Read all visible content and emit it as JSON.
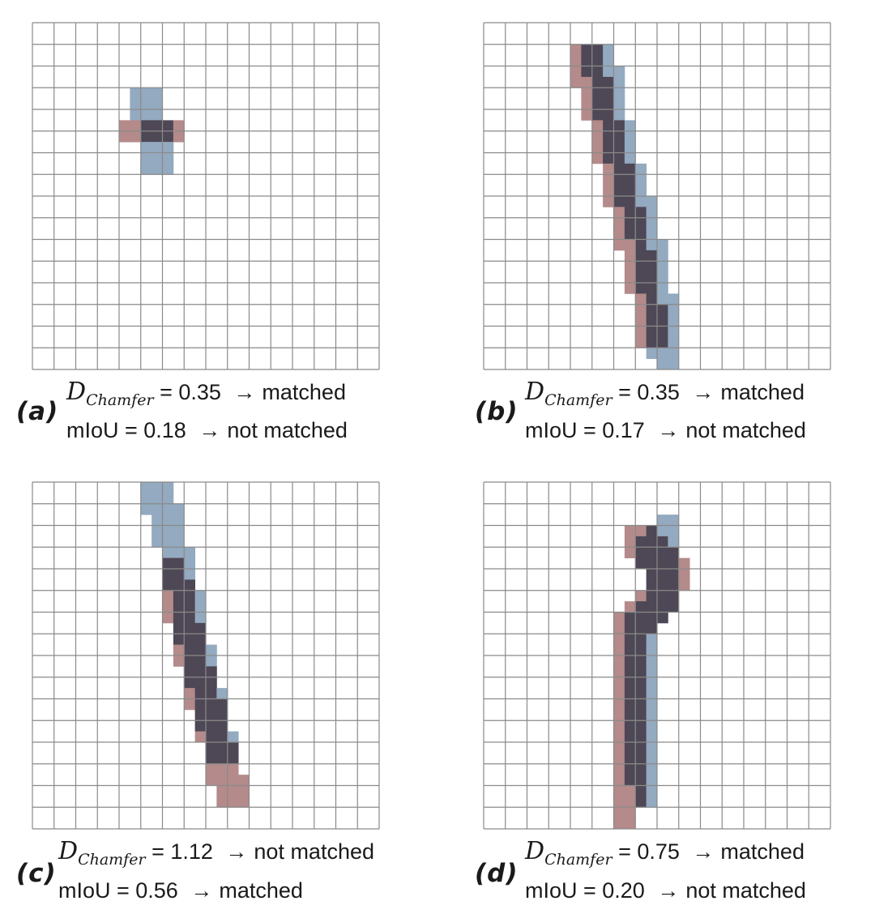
{
  "figure": {
    "colors": {
      "grid_line": "#8a8a8a",
      "prediction": "#b48a8a",
      "ground_truth": "#93aac0",
      "overlap": "#4e4755"
    },
    "panels": [
      {
        "tag": "(a)",
        "metric_symbol": "D",
        "metric_subscript": "Chamfer",
        "chamfer_text": "= 0.35",
        "chamfer_result": "matched",
        "miou_text": "mIoU = 0.18",
        "miou_result": "not matched",
        "grid_size": 16,
        "ground_truth_path": [
          [
            5.3,
            3.8
          ],
          [
            5.6,
            5.0
          ],
          [
            5.9,
            6.5
          ]
        ],
        "prediction_path": [
          [
            4.4,
            4.9
          ],
          [
            6.4,
            5.0
          ]
        ]
      },
      {
        "tag": "(b)",
        "metric_symbol": "D",
        "metric_subscript": "Chamfer",
        "chamfer_text": "= 0.35",
        "chamfer_result": "matched",
        "miou_text": "mIoU = 0.17",
        "miou_result": "not matched",
        "grid_size": 16,
        "ground_truth_path": [
          [
            5.3,
            1.4
          ],
          [
            5.8,
            3.5
          ],
          [
            6.5,
            6.5
          ],
          [
            7.5,
            10.0
          ],
          [
            8.1,
            13.0
          ],
          [
            8.5,
            15.5
          ]
        ],
        "prediction_path": [
          [
            4.7,
            1.8
          ],
          [
            5.5,
            4.5
          ],
          [
            6.4,
            8.0
          ],
          [
            7.3,
            11.5
          ],
          [
            7.8,
            14.5
          ]
        ]
      },
      {
        "tag": "(c)",
        "metric_symbol": "D",
        "metric_subscript": "Chamfer",
        "chamfer_text": "= 1.12",
        "chamfer_result": "not matched",
        "miou_text": "mIoU = 0.56",
        "miou_result": "matched",
        "grid_size": 16,
        "ground_truth_path": [
          [
            5.8,
            0.6
          ],
          [
            6.5,
            3.0
          ],
          [
            7.2,
            6.0
          ],
          [
            8.0,
            9.5
          ],
          [
            8.7,
            12.3
          ]
        ],
        "prediction_path": [
          [
            6.4,
            3.9
          ],
          [
            7.0,
            6.5
          ],
          [
            7.8,
            9.5
          ],
          [
            8.5,
            12.2
          ],
          [
            9.2,
            14.4
          ]
        ]
      },
      {
        "tag": "(d)",
        "metric_symbol": "D",
        "metric_subscript": "Chamfer",
        "chamfer_text": "= 0.75",
        "chamfer_result": "matched",
        "miou_text": "mIoU = 0.20",
        "miou_result": "not matched",
        "grid_size": 16,
        "ground_truth_path": [
          [
            8.6,
            2.1
          ],
          [
            7.8,
            3.2
          ],
          [
            8.5,
            4.4
          ],
          [
            8.1,
            5.5
          ],
          [
            7.1,
            6.8
          ],
          [
            7.3,
            9.0
          ],
          [
            7.3,
            11.5
          ],
          [
            7.4,
            14.2
          ]
        ],
        "prediction_path": [
          [
            7.2,
            2.5
          ],
          [
            8.2,
            3.6
          ],
          [
            8.8,
            4.3
          ],
          [
            8.0,
            5.7
          ],
          [
            6.8,
            6.8
          ],
          [
            6.7,
            9.5
          ],
          [
            6.7,
            12.5
          ],
          [
            6.6,
            15.2
          ]
        ]
      }
    ],
    "arrow_symbol": "→"
  }
}
